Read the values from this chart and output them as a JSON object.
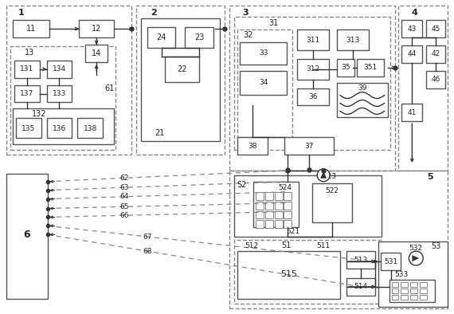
{
  "bg_color": "#ffffff",
  "lc": "#333333",
  "dc": "#888888",
  "ec": "#555555"
}
